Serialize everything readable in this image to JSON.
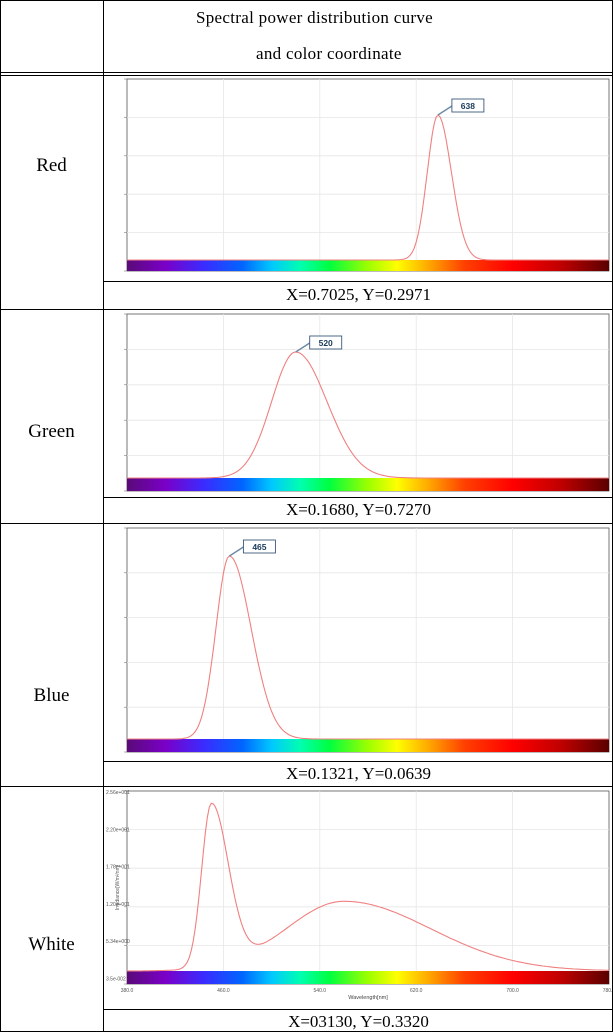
{
  "header": {
    "line1": "Spectral power distribution curve",
    "line2": "and color coordinate"
  },
  "rows": [
    {
      "label": "Red",
      "coordinate": "X=0.7025,  Y=0.2971",
      "peak_label": "638",
      "chart_data": {
        "type": "line",
        "peak_nm": 638,
        "axis_ticks_visible": false,
        "xlabel_visible": false
      }
    },
    {
      "label": "Green",
      "coordinate": "X=0.1680,  Y=0.7270",
      "peak_label": "520",
      "chart_data": {
        "type": "line",
        "peak_nm": 520
      }
    },
    {
      "label": "Blue",
      "coordinate": "X=0.1321,  Y=0.0639",
      "peak_label": "465",
      "chart_data": {
        "type": "line",
        "peak_nm": 465
      }
    },
    {
      "label": "White",
      "coordinate": "X=03130,  Y=0.3320",
      "xlabel": "Wavelength[nm]",
      "ylabel": "Irradiance[W/m²/nm]",
      "y_ticks": [
        "2.56e+001",
        "2.20e+001",
        "1.78e+001",
        "1.20e+001",
        "5.34e+000",
        "3.5e-002"
      ],
      "x_ticks": [
        "380.0",
        "460.0",
        "540.0",
        "620.0",
        "700.0",
        "780.0"
      ],
      "chart_data": {
        "type": "line",
        "peaks_nm": [
          450,
          560
        ]
      }
    }
  ],
  "colors": {
    "curve": "#f08080",
    "border": "#000000",
    "grid": "#e6e6e6"
  }
}
